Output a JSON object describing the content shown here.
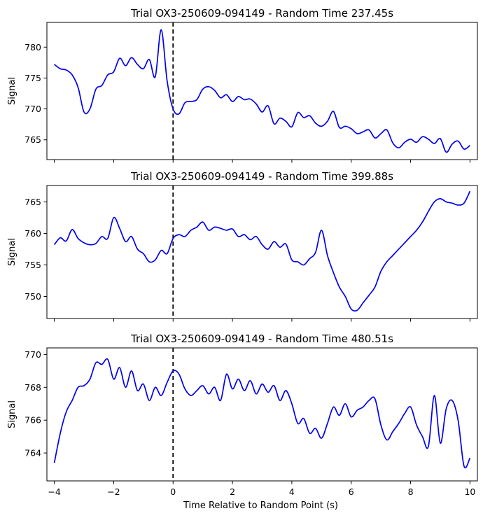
{
  "figure": {
    "xlabel": "Time Relative to Random Point (s)"
  },
  "chart_data": [
    {
      "type": "line",
      "title": "Trial OX3-250609-094149 - Random Time 237.45s",
      "xlabel": "",
      "ylabel": "Signal",
      "xlim": [
        -4.25,
        10.25
      ],
      "ylim": [
        761.8,
        784.0
      ],
      "xticks": [
        -4,
        -2,
        0,
        2,
        4,
        6,
        8,
        10
      ],
      "xtick_labels": [
        "",
        "",
        "",
        "",
        "",
        "",
        "",
        ""
      ],
      "yticks": [
        765,
        770,
        775,
        780
      ],
      "ytick_labels": [
        "765",
        "770",
        "775",
        "780"
      ],
      "vline_x": 0,
      "line_color": "#0000ee",
      "series": [
        {
          "x": [
            -4.0,
            -3.8,
            -3.6,
            -3.4,
            -3.2,
            -3.0,
            -2.8,
            -2.6,
            -2.4,
            -2.2,
            -2.0,
            -1.8,
            -1.6,
            -1.4,
            -1.2,
            -1.0,
            -0.8,
            -0.6,
            -0.4,
            -0.2,
            0.0,
            0.2,
            0.4,
            0.6,
            0.8,
            1.0,
            1.2,
            1.4,
            1.6,
            1.8,
            2.0,
            2.2,
            2.4,
            2.6,
            2.8,
            3.0,
            3.2,
            3.4,
            3.6,
            3.8,
            4.0,
            4.2,
            4.4,
            4.6,
            4.8,
            5.0,
            5.2,
            5.4,
            5.6,
            5.8,
            6.0,
            6.2,
            6.4,
            6.6,
            6.8,
            7.0,
            7.2,
            7.4,
            7.6,
            7.8,
            8.0,
            8.2,
            8.4,
            8.6,
            8.8,
            9.0,
            9.2,
            9.4,
            9.6,
            9.8,
            10.0
          ],
          "y": [
            777.2,
            776.5,
            776.3,
            775.5,
            773.5,
            769.5,
            770.0,
            773.2,
            773.8,
            775.5,
            776.0,
            778.2,
            777.0,
            778.3,
            777.2,
            776.5,
            778.0,
            775.2,
            782.8,
            774.5,
            770.0,
            769.2,
            771.0,
            771.2,
            771.5,
            773.2,
            773.6,
            773.0,
            771.8,
            772.3,
            771.2,
            772.0,
            771.5,
            771.6,
            770.8,
            769.5,
            770.5,
            767.6,
            768.5,
            768.0,
            767.1,
            769.4,
            768.6,
            768.9,
            767.7,
            767.2,
            768.0,
            769.6,
            767.0,
            767.2,
            766.8,
            766.0,
            766.3,
            766.6,
            765.3,
            766.0,
            766.6,
            764.5,
            763.7,
            764.6,
            765.1,
            764.6,
            765.5,
            765.1,
            764.4,
            765.2,
            763.0,
            764.3,
            764.8,
            763.5,
            764.1
          ]
        }
      ]
    },
    {
      "type": "line",
      "title": "Trial OX3-250609-094149 - Random Time 399.88s",
      "xlabel": "",
      "ylabel": "Signal",
      "xlim": [
        -4.25,
        10.25
      ],
      "ylim": [
        746.5,
        767.6
      ],
      "xticks": [
        -4,
        -2,
        0,
        2,
        4,
        6,
        8,
        10
      ],
      "xtick_labels": [
        "",
        "",
        "",
        "",
        "",
        "",
        "",
        ""
      ],
      "yticks": [
        750,
        755,
        760,
        765
      ],
      "ytick_labels": [
        "750",
        "755",
        "760",
        "765"
      ],
      "vline_x": 0,
      "line_color": "#0000ee",
      "series": [
        {
          "x": [
            -4.0,
            -3.8,
            -3.6,
            -3.4,
            -3.2,
            -3.0,
            -2.8,
            -2.6,
            -2.4,
            -2.2,
            -2.0,
            -1.8,
            -1.6,
            -1.4,
            -1.2,
            -1.0,
            -0.8,
            -0.6,
            -0.4,
            -0.2,
            0.0,
            0.2,
            0.4,
            0.6,
            0.8,
            1.0,
            1.2,
            1.4,
            1.6,
            1.8,
            2.0,
            2.2,
            2.4,
            2.6,
            2.8,
            3.0,
            3.2,
            3.4,
            3.6,
            3.8,
            4.0,
            4.2,
            4.4,
            4.6,
            4.8,
            5.0,
            5.2,
            5.4,
            5.6,
            5.8,
            6.0,
            6.2,
            6.4,
            6.6,
            6.8,
            7.0,
            7.2,
            7.4,
            7.6,
            7.8,
            8.0,
            8.2,
            8.4,
            8.6,
            8.8,
            9.0,
            9.2,
            9.4,
            9.6,
            9.8,
            10.0
          ],
          "y": [
            758.2,
            759.3,
            758.8,
            760.6,
            759.2,
            758.5,
            758.2,
            758.4,
            759.5,
            759.2,
            762.5,
            760.8,
            758.7,
            759.5,
            757.5,
            756.8,
            755.5,
            755.8,
            757.3,
            756.8,
            759.2,
            759.8,
            759.5,
            760.5,
            761.0,
            761.8,
            760.5,
            761.0,
            760.8,
            760.5,
            760.7,
            759.5,
            759.8,
            759.0,
            759.5,
            758.2,
            757.5,
            758.7,
            757.8,
            758.3,
            755.8,
            755.5,
            755.0,
            756.0,
            757.0,
            760.5,
            756.5,
            753.8,
            751.5,
            750.0,
            748.0,
            747.8,
            749.0,
            750.2,
            751.5,
            754.0,
            755.5,
            756.5,
            757.5,
            758.5,
            759.5,
            760.5,
            761.8,
            763.5,
            765.0,
            765.5,
            765.0,
            764.8,
            764.5,
            764.8,
            766.7
          ]
        }
      ]
    },
    {
      "type": "line",
      "title": "Trial OX3-250609-094149 - Random Time 480.51s",
      "xlabel": "Time Relative to Random Point (s)",
      "ylabel": "Signal",
      "xlim": [
        -4.25,
        10.25
      ],
      "ylim": [
        762.3,
        770.4
      ],
      "xticks": [
        -4,
        -2,
        0,
        2,
        4,
        6,
        8,
        10
      ],
      "xtick_labels": [
        "−4",
        "−2",
        "0",
        "2",
        "4",
        "6",
        "8",
        "10"
      ],
      "yticks": [
        764,
        766,
        768,
        770
      ],
      "ytick_labels": [
        "764",
        "766",
        "768",
        "770"
      ],
      "vline_x": 0,
      "line_color": "#0000ee",
      "series": [
        {
          "x": [
            -4.0,
            -3.8,
            -3.6,
            -3.4,
            -3.2,
            -3.0,
            -2.8,
            -2.6,
            -2.4,
            -2.2,
            -2.0,
            -1.8,
            -1.6,
            -1.4,
            -1.2,
            -1.0,
            -0.8,
            -0.6,
            -0.4,
            -0.2,
            0.0,
            0.2,
            0.4,
            0.6,
            0.8,
            1.0,
            1.2,
            1.4,
            1.6,
            1.8,
            2.0,
            2.2,
            2.4,
            2.6,
            2.8,
            3.0,
            3.2,
            3.4,
            3.6,
            3.8,
            4.0,
            4.2,
            4.4,
            4.6,
            4.8,
            5.0,
            5.2,
            5.4,
            5.6,
            5.8,
            6.0,
            6.2,
            6.4,
            6.6,
            6.8,
            7.0,
            7.2,
            7.4,
            7.6,
            7.8,
            8.0,
            8.2,
            8.4,
            8.6,
            8.8,
            9.0,
            9.2,
            9.4,
            9.6,
            9.8,
            10.0
          ],
          "y": [
            763.4,
            765.2,
            766.5,
            767.2,
            768.0,
            768.1,
            768.5,
            769.5,
            769.4,
            769.7,
            768.5,
            769.2,
            768.0,
            769.0,
            767.8,
            768.2,
            767.2,
            768.0,
            767.5,
            768.3,
            769.0,
            768.8,
            767.9,
            767.5,
            767.8,
            768.1,
            767.6,
            768.0,
            767.2,
            768.8,
            767.9,
            768.5,
            767.8,
            768.4,
            767.6,
            768.2,
            767.7,
            768.1,
            767.2,
            767.8,
            767.0,
            765.8,
            766.1,
            765.2,
            765.5,
            764.9,
            765.8,
            766.8,
            766.3,
            767.0,
            766.2,
            766.6,
            766.8,
            767.2,
            767.3,
            765.7,
            764.8,
            765.3,
            765.8,
            766.4,
            766.8,
            765.7,
            765.0,
            764.4,
            767.5,
            764.6,
            766.7,
            767.2,
            766.0,
            763.2,
            763.7
          ]
        }
      ]
    }
  ]
}
